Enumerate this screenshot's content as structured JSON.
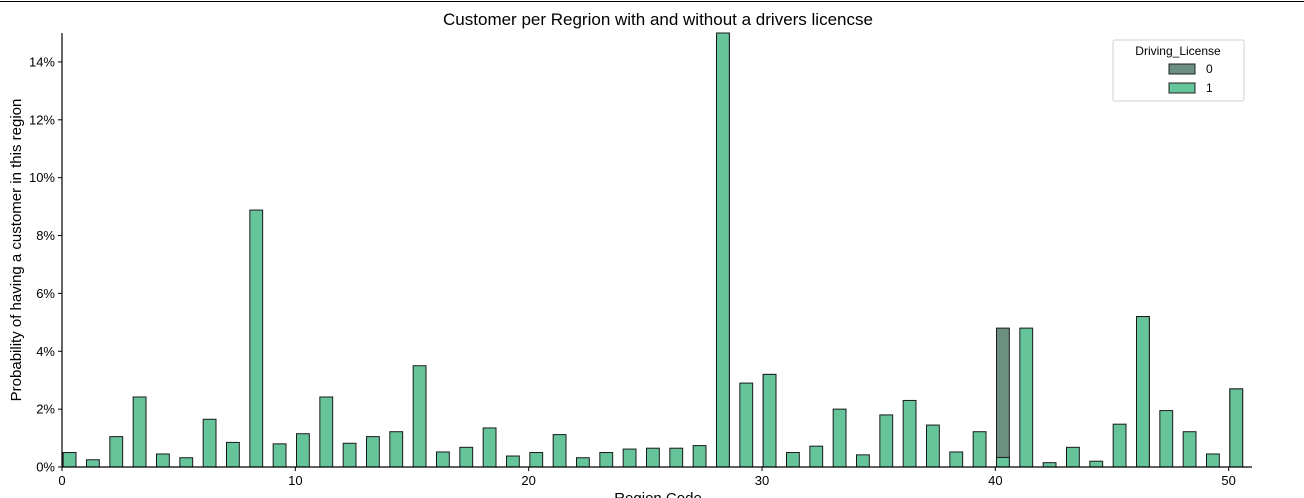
{
  "chart_data": {
    "type": "bar",
    "title": "Customer per Regrion with and without a drivers licencse",
    "xlabel": "Region Code",
    "ylabel": "Probability of having a customer in this region",
    "xlim": [
      0,
      51
    ],
    "ylim": [
      0,
      15
    ],
    "x_ticks": [
      0,
      10,
      20,
      30,
      40,
      50
    ],
    "y_ticks": [
      0,
      2,
      4,
      6,
      8,
      10,
      12,
      14
    ],
    "y_tick_format": "percent",
    "grid": false,
    "legend": {
      "title": "Driving_License",
      "placement": "top-right"
    },
    "series": [
      {
        "name": "0",
        "color": "#6b8f80",
        "values": [
          {
            "x": 0,
            "y": 0.5
          },
          {
            "x": 28,
            "y": 15.0
          },
          {
            "x": 30,
            "y": 3.2
          },
          {
            "x": 40,
            "y": 4.8
          },
          {
            "x": 46,
            "y": 5.2
          },
          {
            "x": 50,
            "y": 2.7
          }
        ]
      },
      {
        "name": "1",
        "color": "#66c49a",
        "values": [
          {
            "x": 0,
            "y": 0.5
          },
          {
            "x": 1,
            "y": 0.25
          },
          {
            "x": 2,
            "y": 1.05
          },
          {
            "x": 3,
            "y": 2.42
          },
          {
            "x": 4,
            "y": 0.45
          },
          {
            "x": 5,
            "y": 0.32
          },
          {
            "x": 6,
            "y": 1.65
          },
          {
            "x": 7,
            "y": 0.85
          },
          {
            "x": 8,
            "y": 8.88
          },
          {
            "x": 9,
            "y": 0.8
          },
          {
            "x": 10,
            "y": 1.15
          },
          {
            "x": 11,
            "y": 2.42
          },
          {
            "x": 12,
            "y": 0.82
          },
          {
            "x": 13,
            "y": 1.05
          },
          {
            "x": 14,
            "y": 1.22
          },
          {
            "x": 15,
            "y": 3.5
          },
          {
            "x": 16,
            "y": 0.52
          },
          {
            "x": 17,
            "y": 0.68
          },
          {
            "x": 18,
            "y": 1.35
          },
          {
            "x": 19,
            "y": 0.38
          },
          {
            "x": 20,
            "y": 0.5
          },
          {
            "x": 21,
            "y": 1.12
          },
          {
            "x": 22,
            "y": 0.32
          },
          {
            "x": 23,
            "y": 0.5
          },
          {
            "x": 24,
            "y": 0.62
          },
          {
            "x": 25,
            "y": 0.65
          },
          {
            "x": 26,
            "y": 0.65
          },
          {
            "x": 27,
            "y": 0.74
          },
          {
            "x": 28,
            "y": 15.0
          },
          {
            "x": 29,
            "y": 2.9
          },
          {
            "x": 30,
            "y": 3.2
          },
          {
            "x": 31,
            "y": 0.5
          },
          {
            "x": 32,
            "y": 0.72
          },
          {
            "x": 33,
            "y": 2.0
          },
          {
            "x": 34,
            "y": 0.42
          },
          {
            "x": 35,
            "y": 1.8
          },
          {
            "x": 36,
            "y": 2.3
          },
          {
            "x": 37,
            "y": 1.45
          },
          {
            "x": 38,
            "y": 0.52
          },
          {
            "x": 39,
            "y": 1.22
          },
          {
            "x": 40,
            "y": 0.33
          },
          {
            "x": 41,
            "y": 4.8
          },
          {
            "x": 42,
            "y": 0.15
          },
          {
            "x": 43,
            "y": 0.68
          },
          {
            "x": 44,
            "y": 0.2
          },
          {
            "x": 45,
            "y": 1.48
          },
          {
            "x": 46,
            "y": 5.2
          },
          {
            "x": 47,
            "y": 1.95
          },
          {
            "x": 48,
            "y": 1.22
          },
          {
            "x": 49,
            "y": 0.45
          },
          {
            "x": 50,
            "y": 2.7
          }
        ]
      }
    ]
  }
}
